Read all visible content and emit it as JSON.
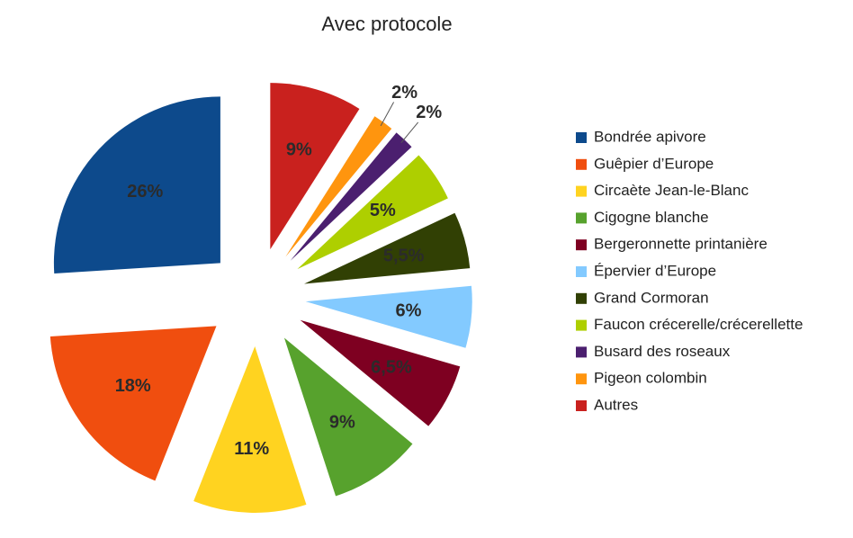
{
  "chart_data": {
    "type": "pie",
    "title": "Avec protocole",
    "categories": [
      "Bondrée apivore",
      "Guêpier d’Europe",
      "Circaète Jean-le-Blanc",
      "Cigogne blanche",
      "Bergeronnette printanière",
      "Épervier d’Europe",
      "Grand Cormoran",
      "Faucon crécerelle/crécerellette",
      "Busard des roseaux",
      "Pigeon colombin",
      "Autres"
    ],
    "values": [
      26,
      18,
      11,
      9,
      6.5,
      6,
      5.5,
      5,
      2,
      2,
      9
    ],
    "value_labels": [
      "26%",
      "18%",
      "11%",
      "9%",
      "6,5%",
      "6%",
      "5,5%",
      "5%",
      "2%",
      "2%",
      "9%"
    ],
    "colors": [
      "#0d4a8c",
      "#f04e0f",
      "#ffd320",
      "#57a22d",
      "#7e0021",
      "#83caff",
      "#314004",
      "#aecf00",
      "#4b1f6f",
      "#ff950e",
      "#c9211e"
    ],
    "legend": "right"
  }
}
